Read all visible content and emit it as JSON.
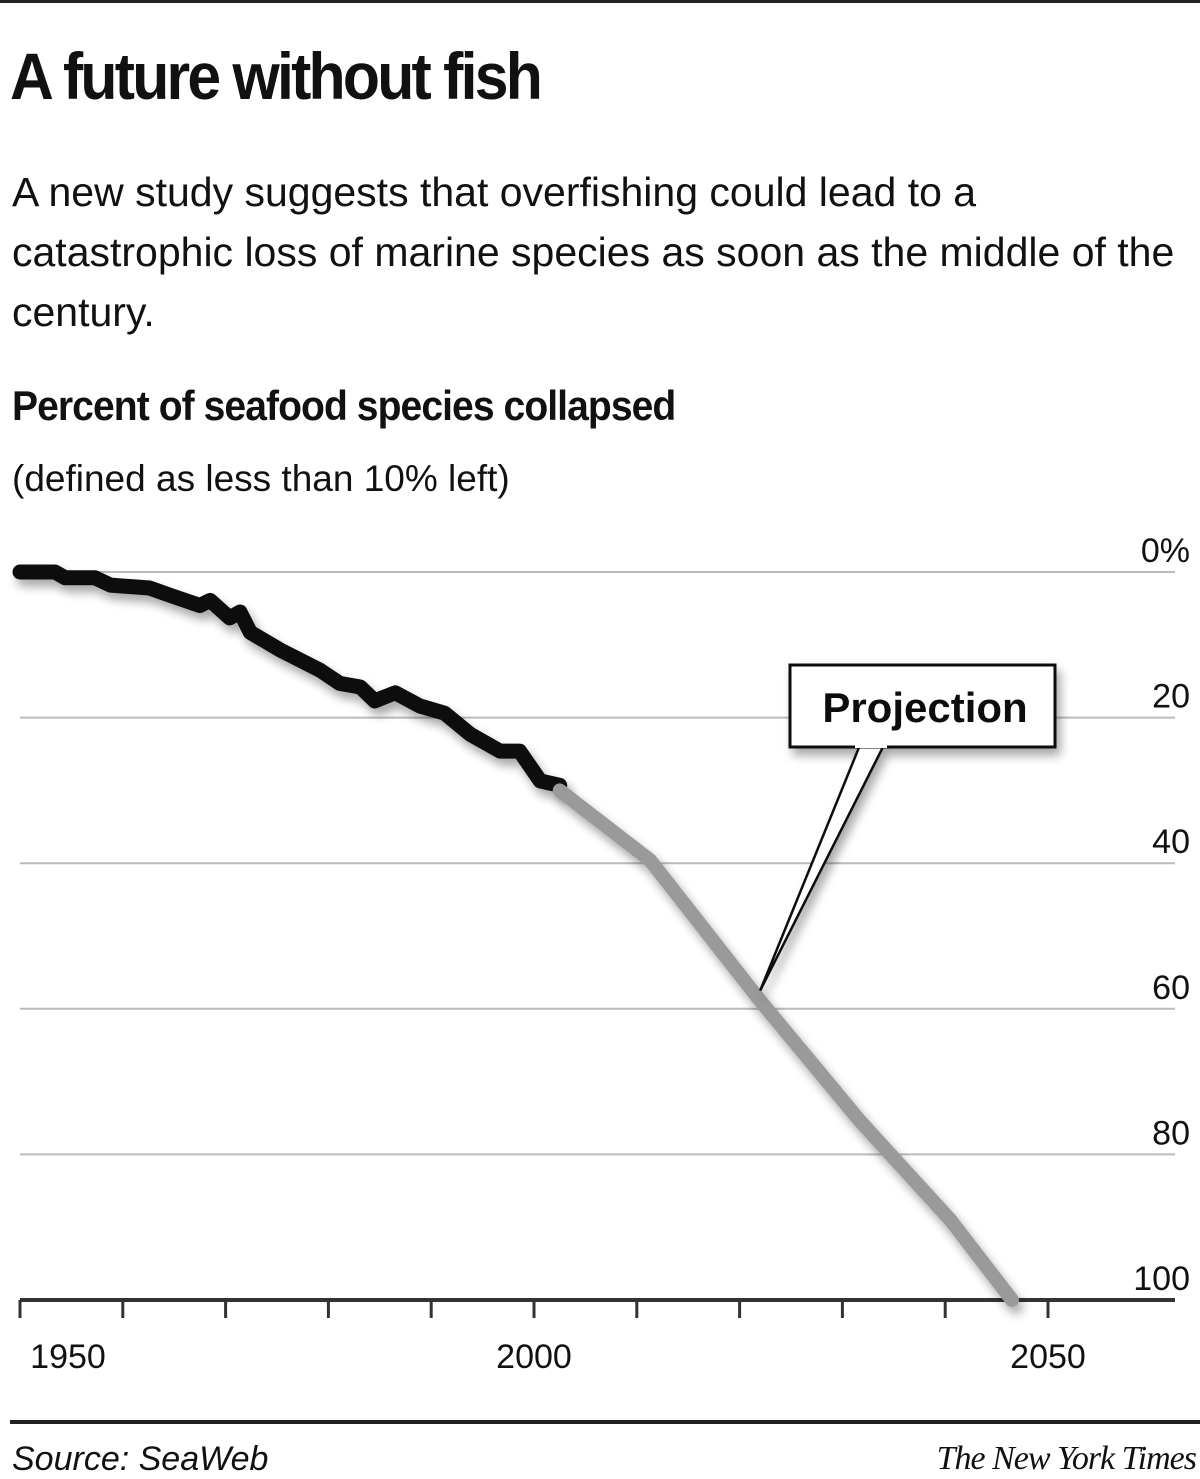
{
  "header": {
    "title": "A future without fish",
    "subtitle": "A new study suggests that overfishing could lead to a catastrophic loss of marine species as soon as the middle of the century."
  },
  "chart_data": {
    "type": "line",
    "title": "Percent of seafood species collapsed",
    "subtitle": "(defined as less than 10% left)",
    "xlabel": "",
    "ylabel": "",
    "xlim": [
      1950,
      2050
    ],
    "ylim": [
      0,
      100
    ],
    "y_inverted": true,
    "grid": true,
    "x_ticks": [
      1950,
      1955,
      1960,
      1965,
      1970,
      1975,
      1980,
      1985,
      1990,
      1995,
      2000,
      2005,
      2010,
      2015,
      2020,
      2025,
      2030,
      2035,
      2040,
      2045,
      2050
    ],
    "x_tick_labels": {
      "1950": "1950",
      "2000": "2000",
      "2050": "2050"
    },
    "y_ticks": [
      0,
      20,
      40,
      60,
      80,
      100
    ],
    "y_tick_labels": [
      "0%",
      "20",
      "40",
      "60",
      "80",
      "100"
    ],
    "series": [
      {
        "style": "observed",
        "color": "#111111",
        "x": [
          1950,
          1953.4,
          1954.4,
          1957.3,
          1958.8,
          1962.6,
          1964.6,
          1967.5,
          1968.5,
          1970.4,
          1971.4,
          1972.4,
          1975.3,
          1979.2,
          1981.1,
          1983.1,
          1984.5,
          1986.5,
          1988.9,
          1991.3,
          1993.8,
          1996.7,
          1998.6,
          2000.6,
          2002.5
        ],
        "y": [
          0,
          0,
          0.8,
          0.8,
          1.8,
          2.2,
          3.2,
          4.6,
          3.9,
          6.3,
          5.5,
          8.3,
          10.7,
          13.5,
          15.3,
          15.8,
          17.7,
          16.6,
          18.4,
          19.4,
          22.3,
          24.6,
          24.6,
          28.7,
          29.3
        ]
      },
      {
        "style": "projection",
        "color": "#9a9a9a",
        "x": [
          2002.5,
          2011.3,
          2022,
          2031.7,
          2040.5,
          2046.5
        ],
        "y": [
          30,
          39.6,
          58.9,
          75.4,
          89,
          100
        ]
      }
    ],
    "annotations": [
      {
        "text": "Projection",
        "x": 2022,
        "y": 57.5
      }
    ]
  },
  "footer": {
    "source": "Source: SeaWeb",
    "credit": "The New York Times"
  }
}
